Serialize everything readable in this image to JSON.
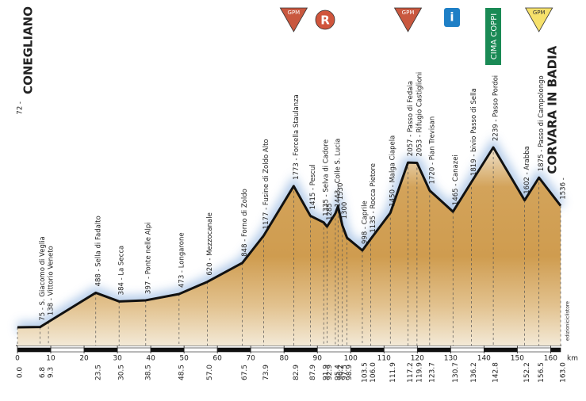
{
  "chart_data": {
    "type": "profile",
    "start_name": "CONEGLIANO",
    "finish_name": "CORVARA IN BADIA",
    "x": [
      0.0,
      6.8,
      9.3,
      23.5,
      30.5,
      38.5,
      48.5,
      57.0,
      67.5,
      73.9,
      82.9,
      87.9,
      91.9,
      92.9,
      95.4,
      96.2,
      97.5,
      98.9,
      103.5,
      106.0,
      111.9,
      117.2,
      119.9,
      123.7,
      130.7,
      136.2,
      142.8,
      152.2,
      156.5,
      163.0
    ],
    "x_labels": [
      "0.0",
      "6.8",
      "9.3",
      "23.5",
      "30.5",
      "38.5",
      "48.5",
      "57.0",
      "67.5",
      "73.9",
      "82.9",
      "87.9",
      "91.9",
      "92.9",
      "95.4",
      "96.2",
      "97.5",
      "98.9",
      "103.5",
      "106.0",
      "111.9",
      "117.2",
      "119.9",
      "123.7",
      "130.7",
      "136.2",
      "142.8",
      "152.2",
      "156.5",
      "163.0"
    ],
    "values": [
      72,
      75,
      138,
      488,
      384,
      397,
      473,
      620,
      848,
      1177,
      1773,
      1415,
      1335,
      1285,
      1443,
      1530,
      1300,
      1150,
      998,
      1135,
      1450,
      2057,
      2053,
      1720,
      1465,
      1819,
      2239,
      1602,
      1875,
      1536
    ],
    "value_labels": [
      "72 -",
      "75 - S. Giacomo di Veglia",
      "138 - Vittorio Veneto",
      "488 - Sella di Fadalto",
      "384 - La Secca",
      "397 - Ponte nelle Alpi",
      "473 - Longarone",
      "620 - Mezzocanale",
      "848 - Forno di Zoldo",
      "1177 - Fusine di Zoldo Alto",
      "1773 - Forcella Staulanza",
      "1415 - Pescul",
      "1335 - Selva di Cadore",
      "1285",
      "1443 - Colle S. Lucia",
      "1530",
      "1300",
      null,
      "998 - Caprile",
      "1135 - Rocca Pietore",
      "1450 - Malga Ciapela",
      "2057 - Passo di Fedaia",
      "2053 - Rifugio Castiglioni",
      "1720 - Pian Trevisan",
      "1465 - Canazei",
      "1819 - bivio Passo di Sella",
      "2239 - Passo Pordoi",
      "1602 - Arabba",
      "1875 - Passo di Campolongo",
      "1536 -"
    ],
    "xlim": [
      0,
      163
    ],
    "xticks": [
      0,
      10,
      20,
      30,
      40,
      50,
      60,
      70,
      80,
      90,
      100,
      110,
      120,
      130,
      140,
      150,
      160
    ],
    "x_unit": "km",
    "credit": "edizioniciclistore",
    "markers": [
      "GPM",
      "R",
      "GPM",
      "i",
      "CIMA COPPI",
      "GPM"
    ]
  }
}
